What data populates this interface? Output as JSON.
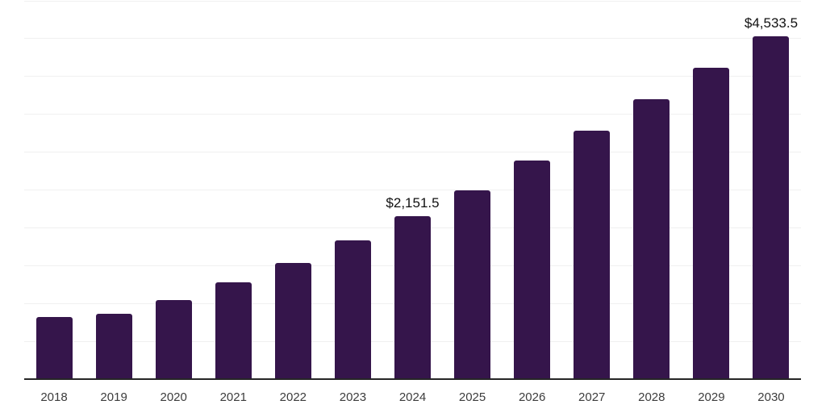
{
  "chart_data": {
    "type": "bar",
    "title": "",
    "xlabel": "",
    "ylabel": "",
    "categories": [
      "2018",
      "2019",
      "2020",
      "2021",
      "2022",
      "2023",
      "2024",
      "2025",
      "2026",
      "2027",
      "2028",
      "2029",
      "2030"
    ],
    "values": [
      820,
      860,
      1045,
      1280,
      1535,
      1830,
      2151.5,
      2500,
      2890,
      3285,
      3700,
      4110,
      4533.5
    ],
    "annotations": [
      {
        "category": "2024",
        "text": "$2,151.5"
      },
      {
        "category": "2030",
        "text": "$4,533.5"
      }
    ],
    "ylim": [
      0,
      5000
    ],
    "gridline_step": 500,
    "grid": "horizontal-only",
    "legend": "none",
    "y_tick_labels_visible": false,
    "colors": {
      "bar": "#35154b",
      "gridline": "#f0f0f0",
      "axis": "#262626",
      "tick_label": "#3c3c3c",
      "data_label": "#111111",
      "background": "#ffffff"
    }
  }
}
